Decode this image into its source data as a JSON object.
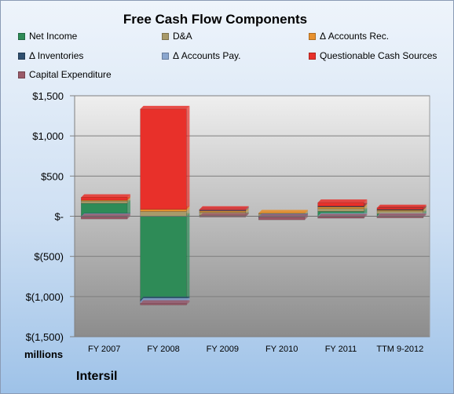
{
  "chart_data": {
    "type": "bar",
    "stacked": true,
    "title": "Free Cash Flow Components",
    "xlabel": "",
    "ylabel": "",
    "units_label": "millions",
    "company": "Intersil",
    "categories": [
      "FY 2007",
      "FY 2008",
      "FY 2009",
      "FY 2010",
      "FY 2011",
      "TTM 9-2012"
    ],
    "ylim": [
      -1500,
      1500
    ],
    "ytick_values": [
      1500,
      1000,
      500,
      0,
      -500,
      -1000,
      -1500
    ],
    "ytick_labels": [
      "$1,500",
      "$1,000",
      "$500",
      "$-",
      "$(500)",
      "$(1,000)",
      "$(1,500)"
    ],
    "grid": true,
    "legend_position": "top",
    "series": [
      {
        "name": "Net Income",
        "color": "#2e8b57",
        "values": [
          160,
          -1040,
          10,
          -5,
          60,
          30
        ]
      },
      {
        "name": "D&A",
        "color": "#a89a6a",
        "values": [
          30,
          60,
          40,
          30,
          35,
          35
        ]
      },
      {
        "name": "Δ Accounts Rec.",
        "color": "#e8912e",
        "values": [
          10,
          25,
          15,
          10,
          20,
          15
        ]
      },
      {
        "name": "Δ Inventories",
        "color": "#2f4f6f",
        "values": [
          -5,
          -20,
          10,
          -5,
          10,
          5
        ]
      },
      {
        "name": "Δ Accounts Pay.",
        "color": "#8aa6cf",
        "values": [
          -5,
          -25,
          5,
          -5,
          -10,
          -5
        ]
      },
      {
        "name": "Questionable Cash Sources",
        "color": "#e8302a",
        "values": [
          35,
          1250,
          5,
          0,
          45,
          20
        ]
      },
      {
        "name": "Capital Expenditure",
        "color": "#9a5a68",
        "values": [
          -25,
          -20,
          -10,
          -30,
          -15,
          -15
        ]
      }
    ]
  }
}
